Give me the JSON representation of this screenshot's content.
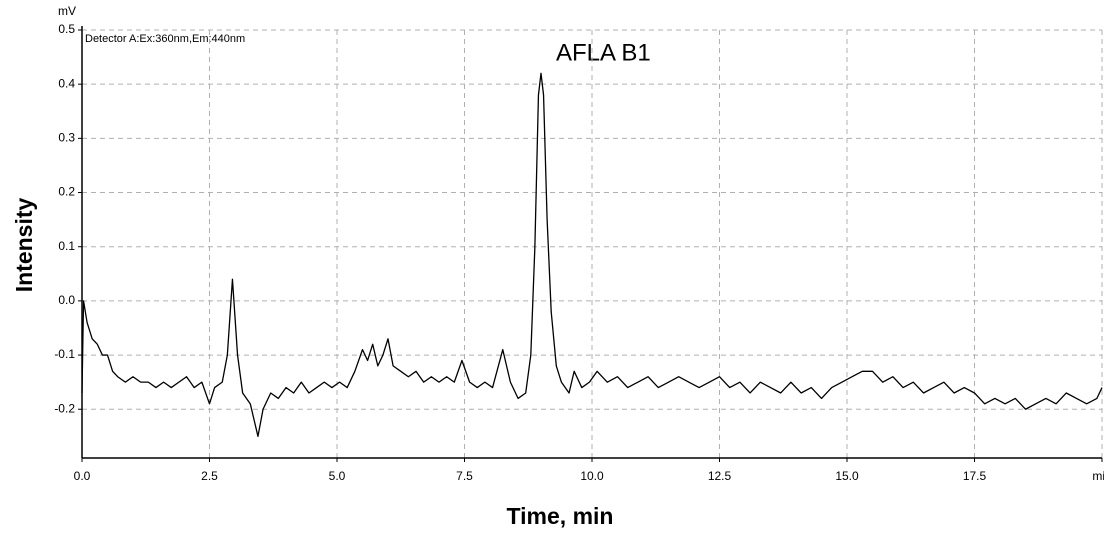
{
  "chart_data": {
    "type": "line",
    "y_unit": "mV",
    "detector": "Detector A:Ex:360nm,Em:440nm",
    "annotation": "AFLA B1",
    "xlabel": "Time, min",
    "ylabel": "Intensity",
    "color": "#000000",
    "grid": true,
    "xlim": [
      0,
      20
    ],
    "ylim": [
      -0.29,
      0.5
    ],
    "xticks": [
      {
        "value": 0,
        "label": "0.0"
      },
      2.5,
      {
        "value": 5,
        "label": "5.0"
      },
      7.5,
      {
        "value": 10,
        "label": "10.0"
      },
      12.5,
      {
        "value": 15,
        "label": "15.0"
      },
      17.5,
      {
        "value": 20,
        "label": "min"
      }
    ],
    "yticks": [
      {
        "value": -0.2,
        "label": "-0.2"
      },
      {
        "value": -0.1,
        "label": "-0.1"
      },
      {
        "value": 0,
        "label": "0.0"
      },
      0.1,
      0.2,
      0.3,
      0.4,
      0.5
    ],
    "x": [
      0,
      0.03,
      0.1,
      0.2,
      0.3,
      0.4,
      0.5,
      0.6,
      0.7,
      0.85,
      1.0,
      1.15,
      1.3,
      1.45,
      1.6,
      1.75,
      1.9,
      2.05,
      2.2,
      2.35,
      2.5,
      2.6,
      2.75,
      2.85,
      2.95,
      3.05,
      3.15,
      3.3,
      3.45,
      3.55,
      3.7,
      3.85,
      4.0,
      4.15,
      4.3,
      4.45,
      4.6,
      4.75,
      4.9,
      5.05,
      5.2,
      5.35,
      5.5,
      5.6,
      5.7,
      5.8,
      5.9,
      6.0,
      6.1,
      6.25,
      6.4,
      6.55,
      6.7,
      6.85,
      7.0,
      7.15,
      7.3,
      7.45,
      7.6,
      7.75,
      7.9,
      8.05,
      8.25,
      8.4,
      8.55,
      8.7,
      8.8,
      8.88,
      8.95,
      9.0,
      9.05,
      9.12,
      9.2,
      9.3,
      9.4,
      9.55,
      9.65,
      9.8,
      9.95,
      10.1,
      10.3,
      10.5,
      10.7,
      10.9,
      11.1,
      11.3,
      11.5,
      11.7,
      11.9,
      12.1,
      12.3,
      12.5,
      12.7,
      12.9,
      13.1,
      13.3,
      13.5,
      13.7,
      13.9,
      14.1,
      14.3,
      14.5,
      14.7,
      14.9,
      15.1,
      15.3,
      15.5,
      15.7,
      15.9,
      16.1,
      16.3,
      16.5,
      16.7,
      16.9,
      17.1,
      17.3,
      17.5,
      17.7,
      17.9,
      18.1,
      18.3,
      18.5,
      18.7,
      18.9,
      19.1,
      19.3,
      19.5,
      19.7,
      19.9,
      20.0
    ],
    "values": [
      -0.17,
      0.0,
      -0.04,
      -0.07,
      -0.08,
      -0.1,
      -0.1,
      -0.13,
      -0.14,
      -0.15,
      -0.14,
      -0.15,
      -0.15,
      -0.16,
      -0.15,
      -0.16,
      -0.15,
      -0.14,
      -0.16,
      -0.15,
      -0.19,
      -0.16,
      -0.15,
      -0.1,
      0.04,
      -0.1,
      -0.17,
      -0.19,
      -0.25,
      -0.2,
      -0.17,
      -0.18,
      -0.16,
      -0.17,
      -0.15,
      -0.17,
      -0.16,
      -0.15,
      -0.16,
      -0.15,
      -0.16,
      -0.13,
      -0.09,
      -0.11,
      -0.08,
      -0.12,
      -0.1,
      -0.07,
      -0.12,
      -0.13,
      -0.14,
      -0.13,
      -0.15,
      -0.14,
      -0.15,
      -0.14,
      -0.15,
      -0.11,
      -0.15,
      -0.16,
      -0.15,
      -0.16,
      -0.09,
      -0.15,
      -0.18,
      -0.17,
      -0.1,
      0.1,
      0.38,
      0.42,
      0.38,
      0.15,
      -0.02,
      -0.12,
      -0.15,
      -0.17,
      -0.13,
      -0.16,
      -0.15,
      -0.13,
      -0.15,
      -0.14,
      -0.16,
      -0.15,
      -0.14,
      -0.16,
      -0.15,
      -0.14,
      -0.15,
      -0.16,
      -0.15,
      -0.14,
      -0.16,
      -0.15,
      -0.17,
      -0.15,
      -0.16,
      -0.17,
      -0.15,
      -0.17,
      -0.16,
      -0.18,
      -0.16,
      -0.15,
      -0.14,
      -0.13,
      -0.13,
      -0.15,
      -0.14,
      -0.16,
      -0.15,
      -0.17,
      -0.16,
      -0.15,
      -0.17,
      -0.16,
      -0.17,
      -0.19,
      -0.18,
      -0.19,
      -0.18,
      -0.2,
      -0.19,
      -0.18,
      -0.19,
      -0.17,
      -0.18,
      -0.19,
      -0.18,
      -0.16
    ]
  }
}
